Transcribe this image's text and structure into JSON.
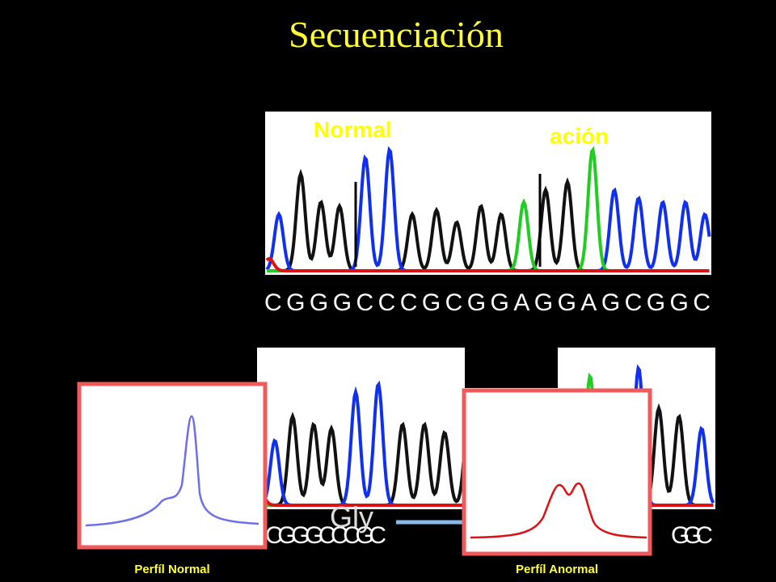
{
  "title": "Secuenciación",
  "panels": [
    {
      "labels": [
        "Normal",
        "ación"
      ],
      "sequence": "CGGGCCCGCGGAGGAGCGGC"
    },
    {
      "sequence_left": "CGGGCCCGC",
      "sequence_right": "GGC",
      "annotation": "Gly"
    }
  ],
  "insets": [
    {
      "caption": "Perfíl Normal"
    },
    {
      "caption": "Perfíl Anormal"
    }
  ]
}
